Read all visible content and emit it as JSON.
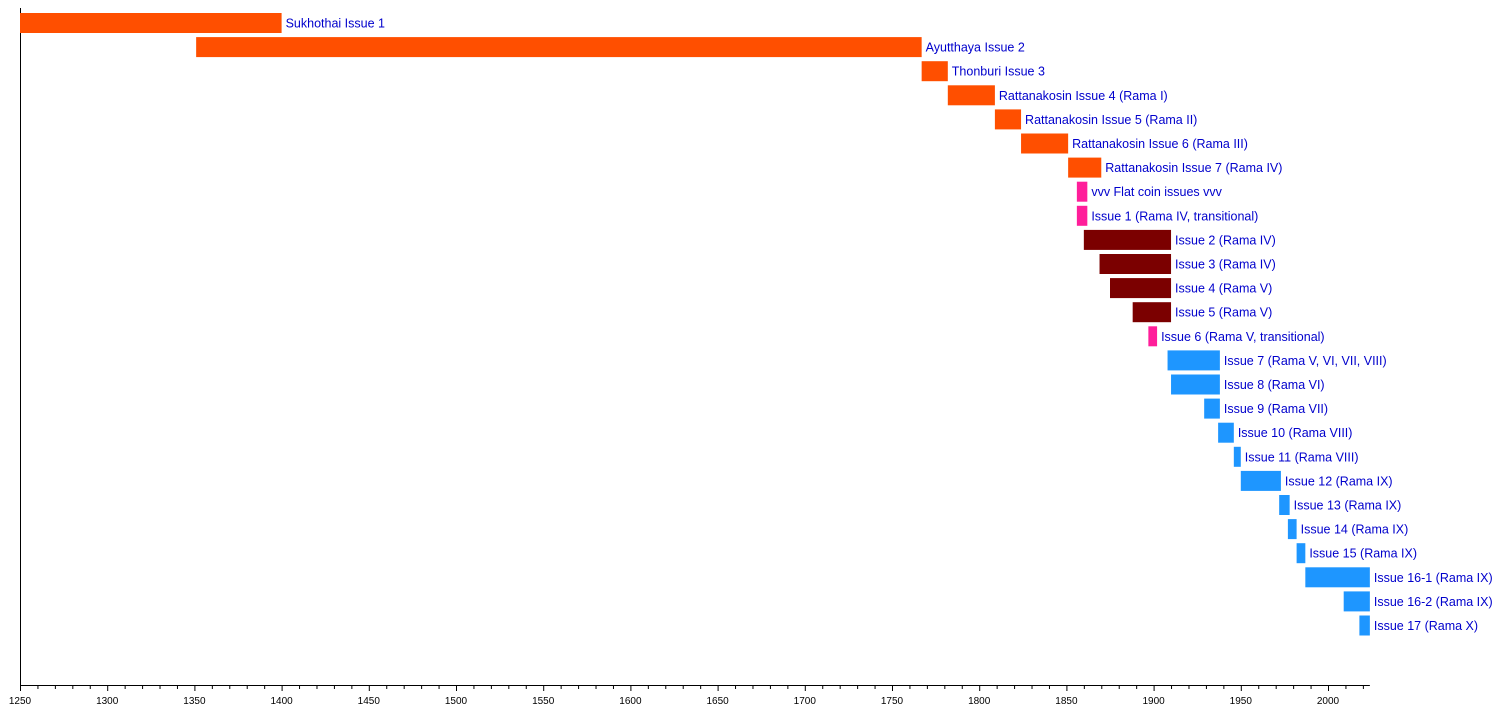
{
  "chart_data": {
    "type": "bar",
    "orientation": "horizontal-timeline",
    "xlim": [
      1250,
      2024
    ],
    "x_ticks": [
      1250,
      1300,
      1350,
      1400,
      1450,
      1500,
      1550,
      1600,
      1650,
      1700,
      1750,
      1800,
      1850,
      1900,
      1950,
      2000
    ],
    "minor_tick_step": 10,
    "grid": false,
    "colors": {
      "orange": "#ff4f00",
      "pink": "#ff1e9a",
      "maroon": "#7b0000",
      "blue": "#1e96ff",
      "label": "#0000cc"
    },
    "bars": [
      {
        "label": "Sukhothai Issue 1",
        "start": 1250,
        "end": 1400,
        "color": "orange"
      },
      {
        "label": "Ayutthaya Issue 2",
        "start": 1351,
        "end": 1767,
        "color": "orange"
      },
      {
        "label": "Thonburi Issue 3",
        "start": 1767,
        "end": 1782,
        "color": "orange"
      },
      {
        "label": "Rattanakosin Issue 4 (Rama I)",
        "start": 1782,
        "end": 1809,
        "color": "orange"
      },
      {
        "label": "Rattanakosin Issue 5 (Rama II)",
        "start": 1809,
        "end": 1824,
        "color": "orange"
      },
      {
        "label": "Rattanakosin Issue 6 (Rama III)",
        "start": 1824,
        "end": 1851,
        "color": "orange"
      },
      {
        "label": "Rattanakosin Issue 7 (Rama IV)",
        "start": 1851,
        "end": 1870,
        "color": "orange"
      },
      {
        "label": "vvv Flat coin issues vvv",
        "start": 1856,
        "end": 1862,
        "color": "pink"
      },
      {
        "label": "Issue 1 (Rama IV, transitional)",
        "start": 1856,
        "end": 1862,
        "color": "pink"
      },
      {
        "label": "Issue 2 (Rama IV)",
        "start": 1860,
        "end": 1910,
        "color": "maroon"
      },
      {
        "label": "Issue 3 (Rama IV)",
        "start": 1869,
        "end": 1910,
        "color": "maroon"
      },
      {
        "label": "Issue 4 (Rama V)",
        "start": 1875,
        "end": 1910,
        "color": "maroon"
      },
      {
        "label": "Issue 5 (Rama V)",
        "start": 1888,
        "end": 1910,
        "color": "maroon"
      },
      {
        "label": "Issue 6 (Rama V, transitional)",
        "start": 1897,
        "end": 1902,
        "color": "pink"
      },
      {
        "label": "Issue 7 (Rama V, VI, VII, VIII)",
        "start": 1908,
        "end": 1938,
        "color": "blue"
      },
      {
        "label": "Issue 8 (Rama VI)",
        "start": 1910,
        "end": 1938,
        "color": "blue"
      },
      {
        "label": "Issue 9 (Rama VII)",
        "start": 1929,
        "end": 1938,
        "color": "blue"
      },
      {
        "label": "Issue 10 (Rama VIII)",
        "start": 1937,
        "end": 1946,
        "color": "blue"
      },
      {
        "label": "Issue 11 (Rama VIII)",
        "start": 1946,
        "end": 1950,
        "color": "blue"
      },
      {
        "label": "Issue 12 (Rama IX)",
        "start": 1950,
        "end": 1973,
        "color": "blue"
      },
      {
        "label": "Issue 13 (Rama IX)",
        "start": 1972,
        "end": 1978,
        "color": "blue"
      },
      {
        "label": "Issue 14 (Rama IX)",
        "start": 1977,
        "end": 1982,
        "color": "blue"
      },
      {
        "label": "Issue 15 (Rama IX)",
        "start": 1982,
        "end": 1987,
        "color": "blue"
      },
      {
        "label": "Issue 16-1 (Rama IX)",
        "start": 1987,
        "end": 2024,
        "color": "blue"
      },
      {
        "label": "Issue 16-2 (Rama IX)",
        "start": 2009,
        "end": 2024,
        "color": "blue"
      },
      {
        "label": "Issue 17 (Rama X)",
        "start": 2018,
        "end": 2024,
        "color": "blue"
      }
    ]
  }
}
